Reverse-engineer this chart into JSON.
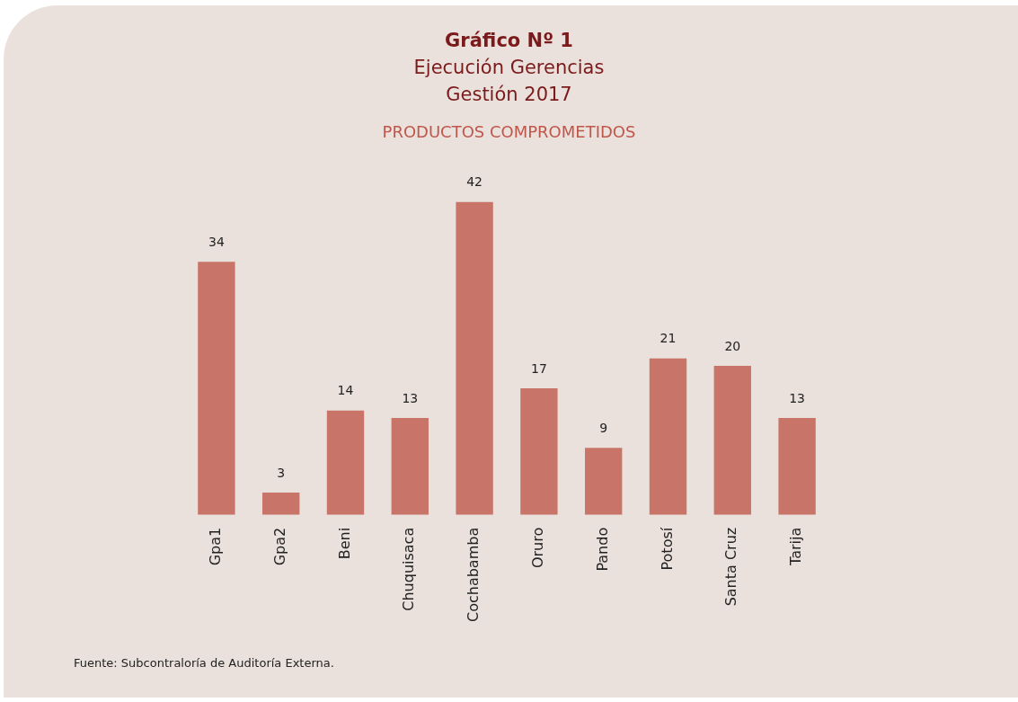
{
  "chart_data": {
    "type": "bar",
    "title": "Gráfico Nº 1\nEjecución Gerencias\nGestión 2017",
    "subtitle": "PRODUCTOS COMPROMETIDOS",
    "categories": [
      "Gpa1",
      "Gpa2",
      "Beni",
      "Chuquisaca",
      "Cochabamba",
      "Oruro",
      "Pando",
      "Potosí",
      "Santa Cruz",
      "Tarija"
    ],
    "values": [
      34,
      3,
      14,
      13,
      42,
      17,
      9,
      21,
      20,
      13
    ],
    "color": "#c87468",
    "data_labels": true,
    "grid": false,
    "legend": false,
    "tick_labels": "x",
    "annotations": [
      "Fuente: Subcontraloría de Auditoría Externa."
    ]
  }
}
